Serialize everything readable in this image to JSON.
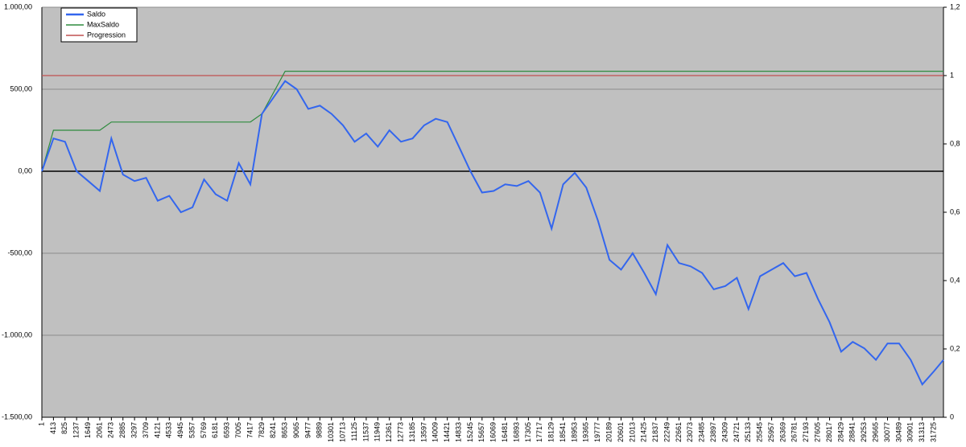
{
  "chart_data": {
    "type": "line",
    "x": [
      1,
      413,
      825,
      1237,
      1649,
      2061,
      2473,
      2885,
      3297,
      3709,
      4121,
      4533,
      4945,
      5357,
      5769,
      6181,
      6593,
      7005,
      7417,
      7829,
      8241,
      8653,
      9065,
      9477,
      9889,
      10301,
      10713,
      11125,
      11537,
      11949,
      12361,
      12773,
      13185,
      13597,
      14009,
      14421,
      14833,
      15245,
      15657,
      16069,
      16481,
      16893,
      17305,
      17717,
      18129,
      18541,
      18953,
      19365,
      19777,
      20189,
      20601,
      21013,
      21425,
      21837,
      22249,
      22661,
      23073,
      23485,
      23897,
      24309,
      24721,
      25133,
      25545,
      25957,
      26369,
      26781,
      27193,
      27605,
      28017,
      28429,
      28841,
      29253,
      29665,
      30077,
      30489,
      30901,
      31313,
      31725,
      32067
    ],
    "xlim": [
      1,
      32067
    ],
    "xticks": [
      1,
      413,
      825,
      1237,
      1649,
      2061,
      2473,
      2885,
      3297,
      3709,
      4121,
      4533,
      4945,
      5357,
      5769,
      6181,
      6593,
      7005,
      7417,
      7829,
      8241,
      8653,
      9065,
      9477,
      9889,
      10301,
      10713,
      11125,
      11537,
      11949,
      12361,
      12773,
      13185,
      13597,
      14009,
      14421,
      14833,
      15245,
      15657,
      16069,
      16481,
      16893,
      17305,
      17717,
      18129,
      18541,
      18953,
      19365,
      19777,
      20189,
      20601,
      21013,
      21425,
      21837,
      22249,
      22661,
      23073,
      23485,
      23897,
      24309,
      24721,
      25133,
      25545,
      25957,
      26369,
      26781,
      27193,
      27605,
      28017,
      28429,
      28841,
      29253,
      29665,
      30077,
      30489,
      30901,
      31313,
      31725
    ],
    "ylim": [
      -1500,
      1000
    ],
    "yticks": [
      {
        "value": -1500,
        "label": "-1.500,00"
      },
      {
        "value": -1000,
        "label": "-1.000,00"
      },
      {
        "value": -500,
        "label": "-500,00"
      },
      {
        "value": 0,
        "label": "0,00"
      },
      {
        "value": 500,
        "label": "500,00"
      },
      {
        "value": 1000,
        "label": "1.000,00"
      }
    ],
    "y2lim": [
      0,
      1.2
    ],
    "y2ticks": [
      0,
      {
        "value": 0.2,
        "label": "0,2"
      },
      {
        "value": 0.4,
        "label": "0,4"
      },
      {
        "value": 0.6,
        "label": "0,6"
      },
      {
        "value": 0.8,
        "label": "0,8"
      },
      1,
      {
        "value": 1.2,
        "label": "1,2"
      }
    ],
    "grid": true,
    "legend": "top-left",
    "series": [
      {
        "name": "Saldo",
        "color": "#3366ee",
        "values": [
          0,
          200,
          180,
          0,
          -60,
          -120,
          200,
          -20,
          -60,
          -40,
          -180,
          -150,
          -250,
          -220,
          -50,
          -140,
          -180,
          50,
          -80,
          350,
          450,
          550,
          500,
          380,
          400,
          350,
          280,
          180,
          230,
          150,
          250,
          180,
          200,
          280,
          320,
          300,
          150,
          0,
          -130,
          -120,
          -80,
          -90,
          -60,
          -130,
          -350,
          -80,
          -10,
          -100,
          -300,
          -540,
          -600,
          -500,
          -620,
          -750,
          -450,
          -560,
          -580,
          -620,
          -720,
          -700,
          -650,
          -840,
          -640,
          -600,
          -560,
          -640,
          -620,
          -780,
          -920,
          -1100,
          -1040,
          -1080,
          -1150,
          -1050,
          -1050,
          -1150,
          -1300,
          -1220,
          -1150
        ]
      },
      {
        "name": "MaxSaldo",
        "color": "#2e8b3e",
        "values": [
          0,
          250,
          250,
          250,
          250,
          250,
          300,
          300,
          300,
          300,
          300,
          300,
          300,
          300,
          300,
          300,
          300,
          300,
          300,
          350,
          480,
          610,
          610,
          610,
          610,
          610,
          610,
          610,
          610,
          610,
          610,
          610,
          610,
          610,
          610,
          610,
          610,
          610,
          610,
          610,
          610,
          610,
          610,
          610,
          610,
          610,
          610,
          610,
          610,
          610,
          610,
          610,
          610,
          610,
          610,
          610,
          610,
          610,
          610,
          610,
          610,
          610,
          610,
          610,
          610,
          610,
          610,
          610,
          610,
          610,
          610,
          610,
          610,
          610,
          610,
          610,
          610,
          610,
          610
        ]
      },
      {
        "name": "Progression",
        "color": "#c05050",
        "axis": "y2",
        "values": [
          1,
          1,
          1,
          1,
          1,
          1,
          1,
          1,
          1,
          1,
          1,
          1,
          1,
          1,
          1,
          1,
          1,
          1,
          1,
          1,
          1,
          1,
          1,
          1,
          1,
          1,
          1,
          1,
          1,
          1,
          1,
          1,
          1,
          1,
          1,
          1,
          1,
          1,
          1,
          1,
          1,
          1,
          1,
          1,
          1,
          1,
          1,
          1,
          1,
          1,
          1,
          1,
          1,
          1,
          1,
          1,
          1,
          1,
          1,
          1,
          1,
          1,
          1,
          1,
          1,
          1,
          1,
          1,
          1,
          1,
          1,
          1,
          1,
          1,
          1,
          1,
          1,
          1,
          1
        ]
      }
    ]
  }
}
